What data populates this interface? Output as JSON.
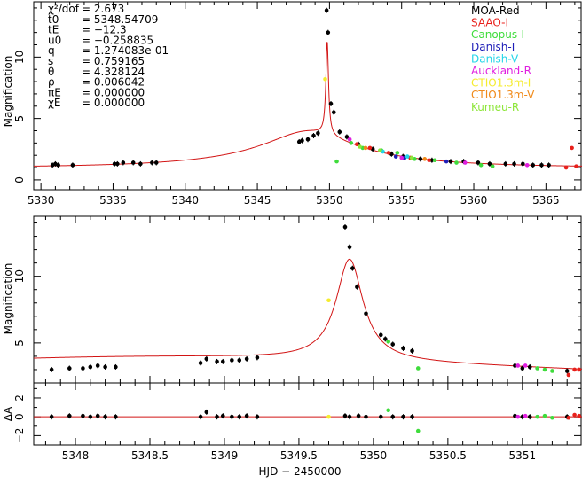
{
  "figure": {
    "xlabel_bottom": "HJD − 2450000",
    "ylabel_top": "Magnification",
    "ylabel_middle": "Magnification",
    "ylabel_residual": "ΔA"
  },
  "parameters": [
    {
      "label": "χ²/dof",
      "value": "= 2.673"
    },
    {
      "label": "t0",
      "value": "= 5348.54709"
    },
    {
      "label": "tE",
      "value": "= −12.3"
    },
    {
      "label": "u0",
      "value": "= −0.258835"
    },
    {
      "label": "q",
      "value": "= 1.274083e-01"
    },
    {
      "label": "s",
      "value": "= 0.759165"
    },
    {
      "label": "θ",
      "value": "= 4.328124"
    },
    {
      "label": "ρ",
      "value": "= 0.006042"
    },
    {
      "label": "πE",
      "value": "= 0.000000"
    },
    {
      "label": "χE",
      "value": "= 0.000000"
    }
  ],
  "colors": {
    "MOA-Red": "#000000",
    "SAAO-I": "#e8201b",
    "Canopus-I": "#3fdc3c",
    "Danish-I": "#1f1fb8",
    "Danish-V": "#22d5e8",
    "Auckland-R": "#e01ee0",
    "CTIO1.3m-I": "#f5ec2e",
    "CTIO1.3m-V": "#f08a1a",
    "Kumeu-R": "#8ee63a",
    "model": "#d21414"
  },
  "chart_data": [
    {
      "type": "scatter",
      "panel": "top",
      "xlim": [
        5329.5,
        5367.5
      ],
      "ylim": [
        -0.8,
        14.5
      ],
      "xticks": [
        5330,
        5335,
        5340,
        5345,
        5350,
        5355,
        5360,
        5365
      ],
      "yticks": [
        0,
        5,
        10
      ],
      "ylabel": "Magnification",
      "legend": {
        "position": "top-right",
        "entries": [
          "MOA-Red",
          "SAAO-I",
          "Canopus-I",
          "Danish-I",
          "Danish-V",
          "Auckland-R",
          "CTIO1.3m-I",
          "CTIO1.3m-V",
          "Kumeu-R"
        ]
      },
      "series": [
        {
          "name": "MOA-Red",
          "x": [
            5330.8,
            5331.0,
            5331.2,
            5332.2,
            5335.1,
            5335.3,
            5335.7,
            5336.4,
            5336.9,
            5337.7,
            5338.0,
            5347.9,
            5348.1,
            5348.5,
            5348.9,
            5349.2,
            5349.8,
            5349.9,
            5350.1,
            5350.3,
            5350.7,
            5351.2,
            5352.0,
            5353.0,
            5354.3,
            5355.1,
            5356.3,
            5357.1,
            5358.4,
            5359.3,
            5360.3,
            5361.1,
            5362.2,
            5362.8,
            5363.4,
            5364.1,
            5364.7,
            5365.2
          ],
          "y": [
            1.2,
            1.3,
            1.2,
            1.2,
            1.3,
            1.3,
            1.4,
            1.4,
            1.3,
            1.4,
            1.4,
            3.1,
            3.2,
            3.3,
            3.6,
            3.8,
            13.8,
            12.0,
            6.2,
            5.5,
            3.9,
            3.5,
            2.9,
            2.5,
            2.1,
            1.9,
            1.7,
            1.6,
            1.5,
            1.5,
            1.4,
            1.3,
            1.3,
            1.3,
            1.3,
            1.2,
            1.2,
            1.2
          ]
        },
        {
          "name": "SAAO-I",
          "x": [
            5351.9,
            5352.8,
            5354.1,
            5355.6,
            5356.9,
            5366.4,
            5366.8,
            5367.1
          ],
          "y": [
            2.9,
            2.6,
            2.2,
            1.8,
            1.6,
            1.0,
            2.6,
            1.1
          ]
        },
        {
          "name": "Canopus-I",
          "x": [
            5350.5,
            5351.5,
            5352.3,
            5353.6,
            5354.7,
            5355.9,
            5357.3,
            5358.8,
            5360.5,
            5361.3
          ],
          "y": [
            1.5,
            3.0,
            2.6,
            2.4,
            2.2,
            1.7,
            1.6,
            1.4,
            1.2,
            1.1
          ]
        },
        {
          "name": "Danish-I",
          "x": [
            5354.6,
            5355.2,
            5358.1
          ],
          "y": [
            1.9,
            1.8,
            1.5
          ]
        },
        {
          "name": "Danish-V",
          "x": [
            5353.7,
            5355.4
          ],
          "y": [
            2.3,
            1.9
          ]
        },
        {
          "name": "Auckland-R",
          "x": [
            5351.4,
            5355.0,
            5359.4,
            5363.7
          ],
          "y": [
            3.3,
            1.8,
            1.4,
            1.2
          ]
        },
        {
          "name": "CTIO1.3m-I",
          "x": [
            5349.7
          ],
          "y": [
            8.2
          ]
        },
        {
          "name": "CTIO1.3m-V",
          "x": [
            5352.5,
            5356.6
          ],
          "y": [
            2.6,
            1.7
          ]
        },
        {
          "name": "Kumeu-R",
          "x": [
            5352.1,
            5353.5,
            5355.7
          ],
          "y": [
            2.7,
            2.4,
            1.8
          ]
        }
      ]
    },
    {
      "type": "scatter",
      "panel": "middle",
      "xlim": [
        5347.72,
        5351.4
      ],
      "ylim": [
        2.0,
        14.5
      ],
      "yticks": [
        5,
        10
      ],
      "ylabel": "Magnification",
      "series": [
        {
          "name": "MOA-Red",
          "x": [
            5347.84,
            5347.96,
            5348.05,
            5348.1,
            5348.15,
            5348.2,
            5348.27,
            5348.84,
            5348.88,
            5348.95,
            5348.99,
            5349.05,
            5349.1,
            5349.15,
            5349.22,
            5349.81,
            5349.84,
            5349.86,
            5349.89,
            5349.95,
            5350.05,
            5350.08,
            5350.13,
            5350.2,
            5350.26,
            5350.95,
            5351.0,
            5351.05,
            5351.3
          ],
          "y": [
            3.0,
            3.1,
            3.1,
            3.2,
            3.3,
            3.2,
            3.2,
            3.5,
            3.8,
            3.6,
            3.6,
            3.7,
            3.7,
            3.8,
            3.9,
            13.7,
            12.2,
            10.6,
            9.2,
            7.2,
            5.6,
            5.3,
            4.9,
            4.6,
            4.4,
            3.3,
            3.1,
            3.2,
            2.9
          ]
        },
        {
          "name": "SAAO-I",
          "x": [
            5351.31,
            5351.35,
            5351.38
          ],
          "y": [
            2.6,
            3.0,
            3.0
          ]
        },
        {
          "name": "Canopus-I",
          "x": [
            5350.1,
            5350.3,
            5351.1,
            5351.15,
            5351.2
          ],
          "y": [
            5.1,
            3.1,
            3.1,
            3.0,
            2.9
          ]
        },
        {
          "name": "Auckland-R",
          "x": [
            5350.97,
            5351.02
          ],
          "y": [
            3.3,
            3.3
          ]
        },
        {
          "name": "CTIO1.3m-I",
          "x": [
            5349.7
          ],
          "y": [
            8.2
          ]
        }
      ]
    },
    {
      "type": "scatter",
      "panel": "residual",
      "xlim": [
        5347.72,
        5351.4
      ],
      "ylim": [
        -3.0,
        3.6
      ],
      "xticks": [
        5348,
        5348.5,
        5349,
        5349.5,
        5350,
        5350.5,
        5351
      ],
      "yticks": [
        -2,
        0,
        2
      ],
      "ylabel": "ΔA",
      "xlabel": "HJD − 2450000",
      "series": [
        {
          "name": "MOA-Red",
          "x": [
            5347.84,
            5347.96,
            5348.05,
            5348.1,
            5348.15,
            5348.2,
            5348.27,
            5348.84,
            5348.88,
            5348.95,
            5348.99,
            5349.05,
            5349.1,
            5349.15,
            5349.22,
            5349.81,
            5349.84,
            5349.9,
            5349.95,
            5350.05,
            5350.13,
            5350.2,
            5350.26,
            5350.95,
            5351.0,
            5351.05,
            5351.3
          ],
          "y": [
            0.0,
            0.1,
            0.1,
            0.0,
            0.1,
            0.0,
            0.0,
            0.0,
            0.5,
            0.0,
            0.1,
            0.0,
            0.0,
            0.1,
            0.0,
            0.1,
            0.0,
            0.1,
            0.0,
            0.0,
            0.0,
            0.0,
            0.0,
            0.1,
            0.0,
            0.0,
            0.0
          ]
        },
        {
          "name": "SAAO-I",
          "x": [
            5351.31,
            5351.35,
            5351.38
          ],
          "y": [
            -0.1,
            0.2,
            0.1
          ]
        },
        {
          "name": "Canopus-I",
          "x": [
            5350.1,
            5350.3,
            5351.1,
            5351.15,
            5351.2
          ],
          "y": [
            0.7,
            -1.5,
            0.0,
            0.1,
            -0.1
          ]
        },
        {
          "name": "Auckland-R",
          "x": [
            5350.97,
            5351.02
          ],
          "y": [
            0.0,
            0.1
          ]
        },
        {
          "name": "CTIO1.3m-I",
          "x": [
            5349.7
          ],
          "y": [
            0.0
          ]
        }
      ]
    }
  ]
}
